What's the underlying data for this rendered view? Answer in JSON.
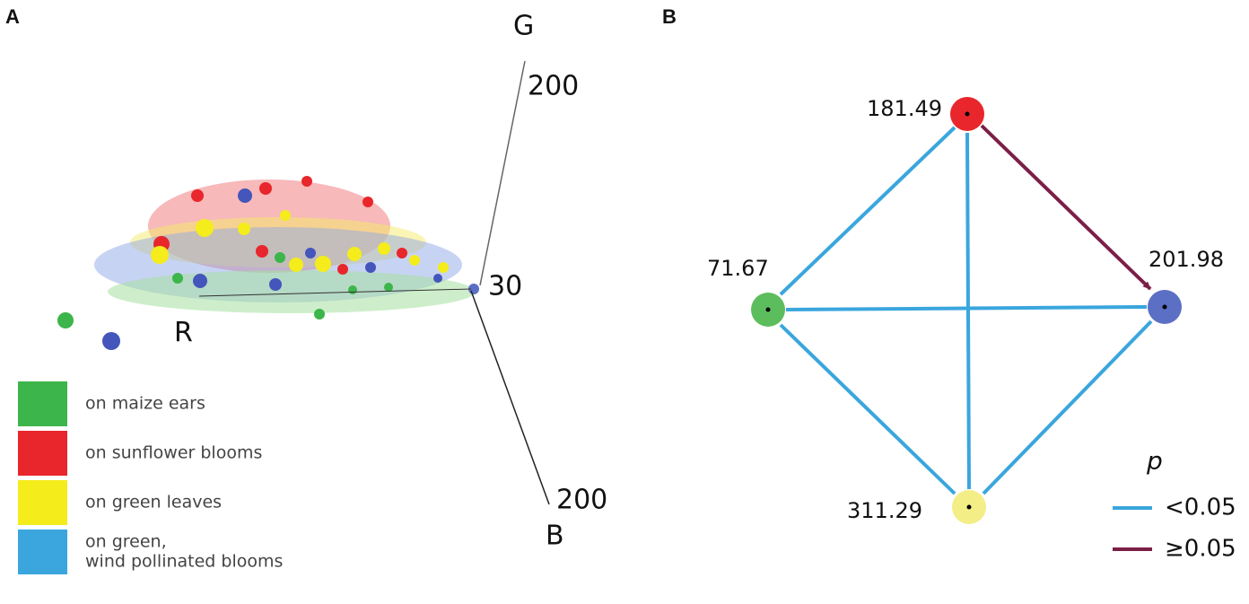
{
  "panel_a": {
    "label": "A",
    "axis_labels": {
      "g": "G",
      "r": "R",
      "b": "B"
    },
    "tick_labels": {
      "g": "200",
      "origin": "30",
      "b": "200"
    },
    "legend": [
      {
        "lines": [
          "on maize  ears"
        ],
        "color": "#3cb54a"
      },
      {
        "lines": [
          "on sunflower blooms"
        ],
        "color": "#e8262b"
      },
      {
        "lines": [
          "on green leaves"
        ],
        "color": "#f5ec1c"
      },
      {
        "lines": [
          "on green,",
          "wind pollinated blooms"
        ],
        "color": "#3aa6dd"
      }
    ]
  },
  "panel_b": {
    "label": "B",
    "nodes": [
      {
        "label": "181.49",
        "color": "#e8262b"
      },
      {
        "label": "71.67",
        "color": "#5cbd5c"
      },
      {
        "label": "201.98",
        "color": "#5b6fc4"
      },
      {
        "label": "311.29",
        "color": "#f3ee86"
      }
    ],
    "legend": {
      "title": "p",
      "items": [
        {
          "label": "<0.05",
          "color": "#3aa6dd"
        },
        {
          "label": "≥0.05",
          "color": "#7b1f47"
        }
      ]
    }
  }
}
